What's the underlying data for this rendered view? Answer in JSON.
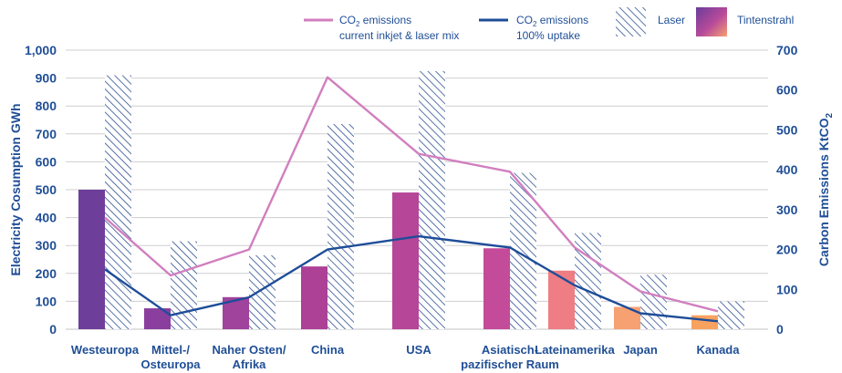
{
  "chart_data": {
    "type": "bar",
    "categories": [
      [
        "Westeuropa"
      ],
      [
        "Mittel-/",
        "Osteuropa"
      ],
      [
        "Naher Osten/",
        "Afrika"
      ],
      [
        "China"
      ],
      [
        "USA"
      ],
      [
        "Asiatisch-",
        "pazifischer Raum"
      ],
      [
        "Lateinamerika"
      ],
      [
        "Japan"
      ],
      [
        "Kanada"
      ]
    ],
    "ylabel_left": "Electricity Cosumption GWh",
    "ylabel_right_prefix": "Carbon Emissions KtCO",
    "ylabel_right_sub": "2",
    "ylim_left": [
      0,
      1000
    ],
    "yticks_left": [
      "0",
      "100",
      "200",
      "300",
      "400",
      "500",
      "600",
      "700",
      "800",
      "900",
      "1,000"
    ],
    "ylim_right": [
      0,
      700
    ],
    "yticks_right": [
      "0",
      "100",
      "200",
      "300",
      "400",
      "500",
      "600",
      "700"
    ],
    "series": [
      {
        "name": "Tintenstrahl",
        "type": "bar",
        "axis": "left",
        "values": [
          500,
          75,
          115,
          225,
          490,
          290,
          210,
          80,
          50
        ]
      },
      {
        "name": "Laser",
        "type": "bar-hatched",
        "axis": "left",
        "values": [
          910,
          315,
          265,
          735,
          925,
          560,
          345,
          195,
          100
        ]
      },
      {
        "name": "CO2 emissions current inkjet & laser mix",
        "type": "line",
        "axis": "right",
        "color": "#d17fbf",
        "values": [
          280,
          135,
          200,
          632,
          440,
          395,
          205,
          95,
          45
        ]
      },
      {
        "name": "CO2 emissions 100% uptake",
        "type": "line",
        "axis": "right",
        "color": "#1e4d99",
        "values": [
          150,
          35,
          80,
          200,
          233,
          205,
          110,
          40,
          20
        ]
      }
    ],
    "bar_colors": [
      "#6e3f9a",
      "#8a3f9e",
      "#a0439c",
      "#ad4196",
      "#b64698",
      "#c44b9a",
      "#ee7d84",
      "#f7a072",
      "#f8a25f"
    ],
    "legend": {
      "line1": {
        "pre": "CO",
        "sub": "2",
        "post": " emissions",
        "line2": "current inkjet & laser mix"
      },
      "line2": {
        "pre": "CO",
        "sub": "2",
        "post": " emissions",
        "line2": "100% uptake"
      },
      "laser": "Laser",
      "inkjet": "Tintenstrahl"
    },
    "colors": {
      "text": "#1f4e96",
      "grid": "#cfcfcf",
      "hatch": "#2d4f92",
      "line_mix": "#d17fbf",
      "line_full": "#1e4d99"
    },
    "grid": true,
    "legend_position": "top-right"
  }
}
